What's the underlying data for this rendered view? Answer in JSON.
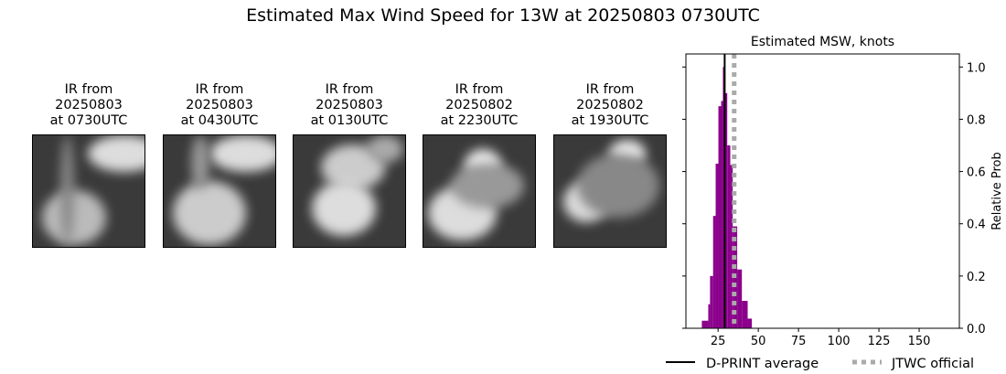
{
  "title": "Estimated Max Wind Speed for 13W at 20250803 0730UTC",
  "thumbnails": [
    {
      "label": [
        "IR from",
        "20250803",
        "at 0730UTC"
      ]
    },
    {
      "label": [
        "IR from",
        "20250803",
        "at 0430UTC"
      ]
    },
    {
      "label": [
        "IR from",
        "20250803",
        "at 0130UTC"
      ]
    },
    {
      "label": [
        "IR from",
        "20250802",
        "at 2230UTC"
      ]
    },
    {
      "label": [
        "IR from",
        "20250802",
        "at 1930UTC"
      ]
    }
  ],
  "chart_data": {
    "type": "bar",
    "title": "Estimated MSW, knots",
    "ylabel": "Relative Prob",
    "xlim": [
      5,
      175
    ],
    "ylim": [
      0,
      1.05
    ],
    "xticks": [
      25,
      50,
      75,
      100,
      125,
      150
    ],
    "yticks": [
      0.0,
      0.2,
      0.4,
      0.6,
      0.8,
      1.0
    ],
    "bin_edges": [
      14.9,
      18.9,
      20,
      21.9,
      23.5,
      25.2,
      26.9,
      28,
      29.3,
      30.7,
      32.6,
      34.1,
      36.9,
      39.8,
      43.4,
      46
    ],
    "values": [
      0.029,
      0.092,
      0.2,
      0.43,
      0.63,
      0.85,
      0.87,
      1.0,
      0.9,
      0.7,
      0.625,
      0.39,
      0.225,
      0.105,
      0.037
    ],
    "bar_color": "#8b008b",
    "dprint_average": 29.1,
    "jtwc_official": 35,
    "legend": [
      {
        "name": "D-PRINT average",
        "color": "#000000",
        "style": "solid"
      },
      {
        "name": "JTWC official",
        "color": "#aaaaaa",
        "style": "dotted"
      }
    ],
    "legend_placement": "bottom"
  }
}
